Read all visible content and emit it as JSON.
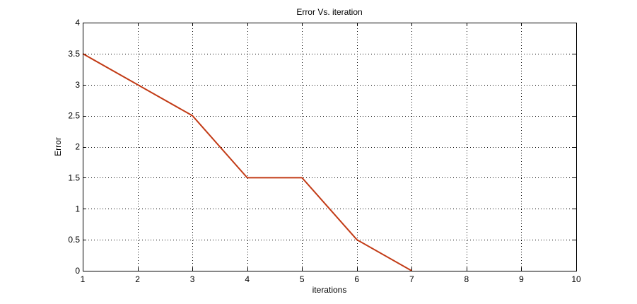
{
  "chart_data": {
    "type": "line",
    "title": "Error Vs. iteration",
    "xlabel": "iterations",
    "ylabel": "Error",
    "xlim": [
      1,
      10
    ],
    "ylim": [
      0,
      4
    ],
    "xticks": [
      1,
      2,
      3,
      4,
      5,
      6,
      7,
      8,
      9,
      10
    ],
    "yticks": [
      0,
      0.5,
      1,
      1.5,
      2,
      2.5,
      3,
      3.5,
      4
    ],
    "grid": true,
    "series": [
      {
        "x": [
          1,
          2,
          3,
          4,
          5,
          6,
          7
        ],
        "y": [
          3.5,
          3.0,
          2.5,
          1.5,
          1.5,
          0.5,
          0
        ],
        "color": "#c23b16"
      }
    ]
  }
}
